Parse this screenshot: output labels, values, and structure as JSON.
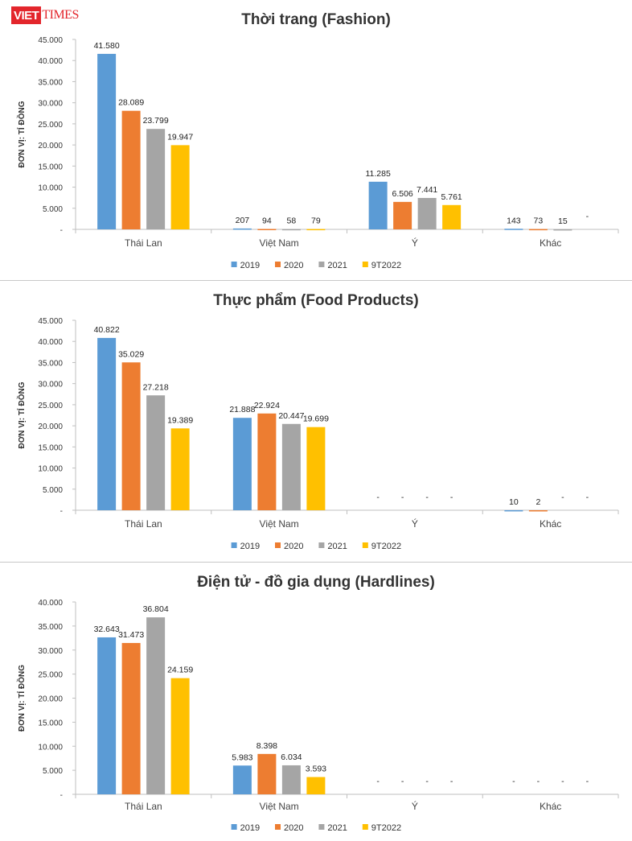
{
  "logo": {
    "part1": "VIET",
    "part2": "TIMES"
  },
  "colors": {
    "2019": "#5b9bd5",
    "2020": "#ed7d31",
    "2021": "#a5a5a5",
    "9T2022": "#ffc000"
  },
  "chart_data": [
    {
      "type": "bar",
      "title": "Thời trang (Fashion)",
      "ylabel": "ĐƠN VỊ: TỈ ĐỒNG",
      "ylim": [
        0,
        45000
      ],
      "yticks": [
        "-",
        "5.000",
        "10.000",
        "15.000",
        "20.000",
        "25.000",
        "30.000",
        "35.000",
        "40.000",
        "45.000"
      ],
      "categories": [
        "Thái Lan",
        "Việt Nam",
        "Ý",
        "Khác"
      ],
      "legend_position": "bottom",
      "series": [
        {
          "name": "2019",
          "values": [
            41580,
            207,
            11285,
            143
          ],
          "labels": [
            "41.580",
            "207",
            "11.285",
            "143"
          ]
        },
        {
          "name": "2020",
          "values": [
            28089,
            94,
            6506,
            73
          ],
          "labels": [
            "28.089",
            "94",
            "6.506",
            "73"
          ]
        },
        {
          "name": "2021",
          "values": [
            23799,
            58,
            7441,
            15
          ],
          "labels": [
            "23.799",
            "58",
            "7.441",
            "15"
          ]
        },
        {
          "name": "9T2022",
          "values": [
            19947,
            79,
            5761,
            0
          ],
          "labels": [
            "19.947",
            "79",
            "5.761",
            "-"
          ]
        }
      ]
    },
    {
      "type": "bar",
      "title": "Thực phẩm (Food Products)",
      "ylabel": "ĐƠN VỊ: TỈ ĐỒNG",
      "ylim": [
        0,
        45000
      ],
      "yticks": [
        "-",
        "5.000",
        "10.000",
        "15.000",
        "20.000",
        "25.000",
        "30.000",
        "35.000",
        "40.000",
        "45.000"
      ],
      "categories": [
        "Thái Lan",
        "Việt Nam",
        "Ý",
        "Khác"
      ],
      "legend_position": "bottom",
      "series": [
        {
          "name": "2019",
          "values": [
            40822,
            21888,
            0,
            10
          ],
          "labels": [
            "40.822",
            "21.888",
            "-",
            "10"
          ]
        },
        {
          "name": "2020",
          "values": [
            35029,
            22924,
            0,
            2
          ],
          "labels": [
            "35.029",
            "22.924",
            "-",
            "2"
          ]
        },
        {
          "name": "2021",
          "values": [
            27218,
            20447,
            0,
            0
          ],
          "labels": [
            "27.218",
            "20.447",
            "-",
            "-"
          ]
        },
        {
          "name": "9T2022",
          "values": [
            19389,
            19699,
            0,
            0
          ],
          "labels": [
            "19.389",
            "19.699",
            "-",
            "-"
          ]
        }
      ]
    },
    {
      "type": "bar",
      "title": "Điện tử - đồ gia dụng (Hardlines)",
      "ylabel": "ĐƠN VỊ: TỈ ĐỒNG",
      "ylim": [
        0,
        40000
      ],
      "yticks": [
        "-",
        "5.000",
        "10.000",
        "15.000",
        "20.000",
        "25.000",
        "30.000",
        "35.000",
        "40.000"
      ],
      "categories": [
        "Thái Lan",
        "Việt Nam",
        "Ý",
        "Khác"
      ],
      "legend_position": "bottom",
      "series": [
        {
          "name": "2019",
          "values": [
            32643,
            5983,
            0,
            0
          ],
          "labels": [
            "32.643",
            "5.983",
            "-",
            "-"
          ]
        },
        {
          "name": "2020",
          "values": [
            31473,
            8398,
            0,
            0
          ],
          "labels": [
            "31.473",
            "8.398",
            "-",
            "-"
          ]
        },
        {
          "name": "2021",
          "values": [
            36804,
            6034,
            0,
            0
          ],
          "labels": [
            "36.804",
            "6.034",
            "-",
            "-"
          ]
        },
        {
          "name": "9T2022",
          "values": [
            24159,
            3593,
            0,
            0
          ],
          "labels": [
            "24.159",
            "3.593",
            "-",
            "-"
          ]
        }
      ]
    }
  ]
}
